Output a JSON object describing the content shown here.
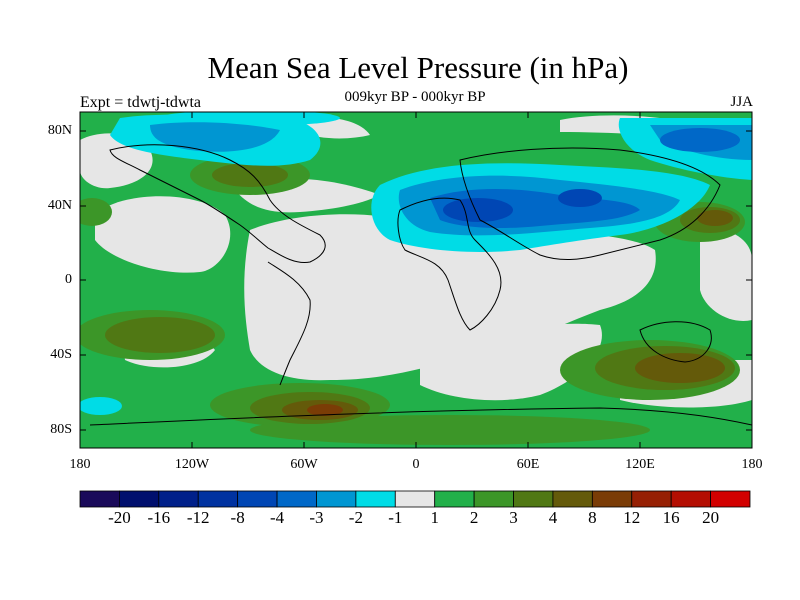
{
  "title": "Mean Sea Level Pressure (in hPa)",
  "subtitle": "009kyr BP - 000kyr BP",
  "experiment_label": "Expt = tdwtj-tdwta",
  "season_label": "JJA",
  "y_ticks": [
    "80N",
    "40N",
    "0",
    "40S",
    "80S"
  ],
  "x_ticks": [
    "180",
    "120W",
    "60W",
    "0",
    "60E",
    "120E",
    "180"
  ],
  "colorbar": {
    "colors": [
      "#1a0a5a",
      "#000f6e",
      "#00208a",
      "#0032a0",
      "#0046b4",
      "#0068c8",
      "#0096d2",
      "#00dce6",
      "#e6e6e6",
      "#22b04a",
      "#3c9628",
      "#507814",
      "#645a0a",
      "#7a3c06",
      "#962004",
      "#b40e02",
      "#d20000"
    ],
    "labels": [
      "-20",
      "-16",
      "-12",
      "-8",
      "-4",
      "-3",
      "-2",
      "-1",
      "1",
      "2",
      "3",
      "4",
      "8",
      "12",
      "16",
      "20"
    ]
  }
}
